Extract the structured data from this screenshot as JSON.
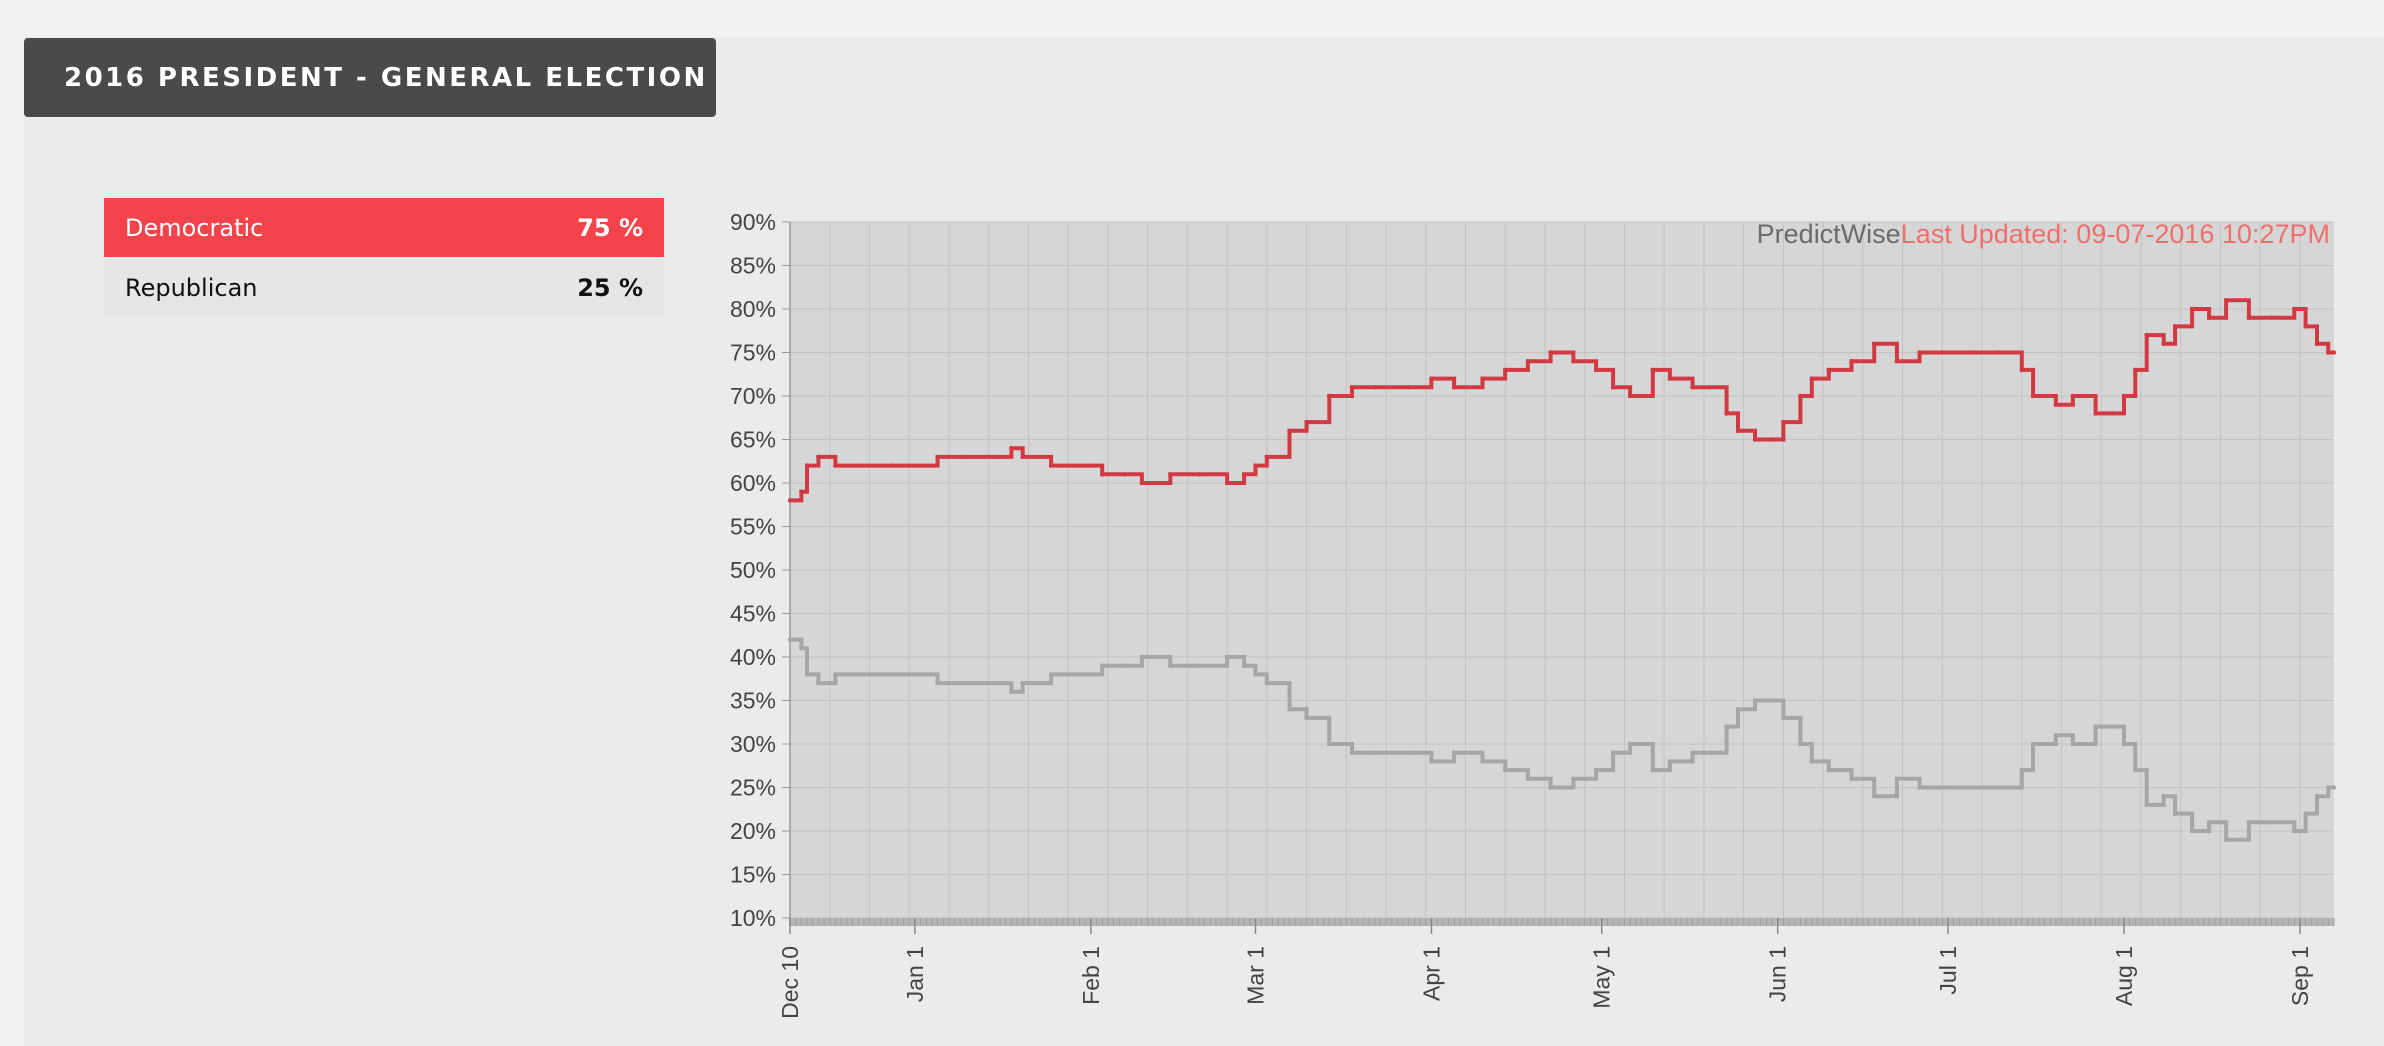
{
  "header": {
    "title": "2016 PRESIDENT - GENERAL ELECTION"
  },
  "legend": [
    {
      "label": "Democratic",
      "value": "75 %"
    },
    {
      "label": "Republican",
      "value": "25 %"
    }
  ],
  "colors": {
    "democratic": "#d23a43",
    "republican": "#a6a6a6",
    "plot_background": "#d6d6d6",
    "gridline": "#c3c3c3",
    "brand_text": "#6b6b6b",
    "updated_text": "#ef6f6f"
  },
  "chart_data": {
    "type": "line",
    "title": "",
    "xlabel": "",
    "ylabel": "",
    "brand": "PredictWise",
    "updated": "Last Updated: 09-07-2016 10:27PM",
    "ylim": [
      10,
      90
    ],
    "xlim": [
      "2015-12-10",
      "2016-09-07"
    ],
    "grid": true,
    "yticks": [
      "10%",
      "15%",
      "20%",
      "25%",
      "30%",
      "35%",
      "40%",
      "45%",
      "50%",
      "55%",
      "60%",
      "65%",
      "70%",
      "75%",
      "80%",
      "85%",
      "90%"
    ],
    "xticks": [
      {
        "date": "2015-12-10",
        "label": "Dec 10"
      },
      {
        "date": "2016-01-01",
        "label": "Jan 1"
      },
      {
        "date": "2016-02-01",
        "label": "Feb 1"
      },
      {
        "date": "2016-03-01",
        "label": "Mar 1"
      },
      {
        "date": "2016-04-01",
        "label": "Apr 1"
      },
      {
        "date": "2016-05-01",
        "label": "May 1"
      },
      {
        "date": "2016-06-01",
        "label": "Jun 1"
      },
      {
        "date": "2016-07-01",
        "label": "Jul 1"
      },
      {
        "date": "2016-08-01",
        "label": "Aug 1"
      },
      {
        "date": "2016-09-01",
        "label": "Sep 1"
      }
    ],
    "series": [
      {
        "name": "Democratic",
        "color": "#d23a43",
        "points": [
          [
            "2015-12-10",
            58
          ],
          [
            "2015-12-12",
            59
          ],
          [
            "2015-12-13",
            62
          ],
          [
            "2015-12-15",
            63
          ],
          [
            "2015-12-18",
            62
          ],
          [
            "2015-12-22",
            62
          ],
          [
            "2015-12-28",
            62
          ],
          [
            "2016-01-05",
            63
          ],
          [
            "2016-01-10",
            63
          ],
          [
            "2016-01-15",
            63
          ],
          [
            "2016-01-18",
            64
          ],
          [
            "2016-01-20",
            63
          ],
          [
            "2016-01-25",
            62
          ],
          [
            "2016-02-01",
            62
          ],
          [
            "2016-02-03",
            61
          ],
          [
            "2016-02-07",
            61
          ],
          [
            "2016-02-10",
            60
          ],
          [
            "2016-02-15",
            61
          ],
          [
            "2016-02-20",
            61
          ],
          [
            "2016-02-25",
            60
          ],
          [
            "2016-02-28",
            61
          ],
          [
            "2016-03-01",
            62
          ],
          [
            "2016-03-03",
            63
          ],
          [
            "2016-03-07",
            66
          ],
          [
            "2016-03-10",
            67
          ],
          [
            "2016-03-14",
            70
          ],
          [
            "2016-03-18",
            71
          ],
          [
            "2016-03-22",
            71
          ],
          [
            "2016-03-28",
            71
          ],
          [
            "2016-04-01",
            72
          ],
          [
            "2016-04-05",
            71
          ],
          [
            "2016-04-10",
            72
          ],
          [
            "2016-04-14",
            73
          ],
          [
            "2016-04-18",
            74
          ],
          [
            "2016-04-22",
            75
          ],
          [
            "2016-04-26",
            74
          ],
          [
            "2016-04-30",
            73
          ],
          [
            "2016-05-03",
            71
          ],
          [
            "2016-05-06",
            70
          ],
          [
            "2016-05-10",
            73
          ],
          [
            "2016-05-13",
            72
          ],
          [
            "2016-05-17",
            71
          ],
          [
            "2016-05-20",
            71
          ],
          [
            "2016-05-23",
            68
          ],
          [
            "2016-05-25",
            66
          ],
          [
            "2016-05-28",
            65
          ],
          [
            "2016-05-31",
            65
          ],
          [
            "2016-06-02",
            67
          ],
          [
            "2016-06-05",
            70
          ],
          [
            "2016-06-07",
            72
          ],
          [
            "2016-06-10",
            73
          ],
          [
            "2016-06-14",
            74
          ],
          [
            "2016-06-18",
            76
          ],
          [
            "2016-06-22",
            74
          ],
          [
            "2016-06-26",
            75
          ],
          [
            "2016-06-30",
            75
          ],
          [
            "2016-07-05",
            75
          ],
          [
            "2016-07-10",
            75
          ],
          [
            "2016-07-14",
            73
          ],
          [
            "2016-07-16",
            70
          ],
          [
            "2016-07-20",
            69
          ],
          [
            "2016-07-23",
            70
          ],
          [
            "2016-07-27",
            68
          ],
          [
            "2016-07-30",
            68
          ],
          [
            "2016-08-01",
            70
          ],
          [
            "2016-08-03",
            73
          ],
          [
            "2016-08-05",
            77
          ],
          [
            "2016-08-08",
            76
          ],
          [
            "2016-08-10",
            78
          ],
          [
            "2016-08-13",
            80
          ],
          [
            "2016-08-16",
            79
          ],
          [
            "2016-08-19",
            81
          ],
          [
            "2016-08-23",
            79
          ],
          [
            "2016-08-27",
            79
          ],
          [
            "2016-08-31",
            80
          ],
          [
            "2016-09-02",
            78
          ],
          [
            "2016-09-04",
            76
          ],
          [
            "2016-09-06",
            75
          ],
          [
            "2016-09-07",
            75
          ]
        ]
      },
      {
        "name": "Republican",
        "color": "#a6a6a6",
        "points": [
          [
            "2015-12-10",
            42
          ],
          [
            "2015-12-12",
            41
          ],
          [
            "2015-12-13",
            38
          ],
          [
            "2015-12-15",
            37
          ],
          [
            "2015-12-18",
            38
          ],
          [
            "2015-12-22",
            38
          ],
          [
            "2015-12-28",
            38
          ],
          [
            "2016-01-05",
            37
          ],
          [
            "2016-01-10",
            37
          ],
          [
            "2016-01-15",
            37
          ],
          [
            "2016-01-18",
            36
          ],
          [
            "2016-01-20",
            37
          ],
          [
            "2016-01-25",
            38
          ],
          [
            "2016-02-01",
            38
          ],
          [
            "2016-02-03",
            39
          ],
          [
            "2016-02-07",
            39
          ],
          [
            "2016-02-10",
            40
          ],
          [
            "2016-02-15",
            39
          ],
          [
            "2016-02-20",
            39
          ],
          [
            "2016-02-25",
            40
          ],
          [
            "2016-02-28",
            39
          ],
          [
            "2016-03-01",
            38
          ],
          [
            "2016-03-03",
            37
          ],
          [
            "2016-03-07",
            34
          ],
          [
            "2016-03-10",
            33
          ],
          [
            "2016-03-14",
            30
          ],
          [
            "2016-03-18",
            29
          ],
          [
            "2016-03-22",
            29
          ],
          [
            "2016-03-28",
            29
          ],
          [
            "2016-04-01",
            28
          ],
          [
            "2016-04-05",
            29
          ],
          [
            "2016-04-10",
            28
          ],
          [
            "2016-04-14",
            27
          ],
          [
            "2016-04-18",
            26
          ],
          [
            "2016-04-22",
            25
          ],
          [
            "2016-04-26",
            26
          ],
          [
            "2016-04-30",
            27
          ],
          [
            "2016-05-03",
            29
          ],
          [
            "2016-05-06",
            30
          ],
          [
            "2016-05-10",
            27
          ],
          [
            "2016-05-13",
            28
          ],
          [
            "2016-05-17",
            29
          ],
          [
            "2016-05-20",
            29
          ],
          [
            "2016-05-23",
            32
          ],
          [
            "2016-05-25",
            34
          ],
          [
            "2016-05-28",
            35
          ],
          [
            "2016-05-31",
            35
          ],
          [
            "2016-06-02",
            33
          ],
          [
            "2016-06-05",
            30
          ],
          [
            "2016-06-07",
            28
          ],
          [
            "2016-06-10",
            27
          ],
          [
            "2016-06-14",
            26
          ],
          [
            "2016-06-18",
            24
          ],
          [
            "2016-06-22",
            26
          ],
          [
            "2016-06-26",
            25
          ],
          [
            "2016-06-30",
            25
          ],
          [
            "2016-07-05",
            25
          ],
          [
            "2016-07-10",
            25
          ],
          [
            "2016-07-14",
            27
          ],
          [
            "2016-07-16",
            30
          ],
          [
            "2016-07-20",
            31
          ],
          [
            "2016-07-23",
            30
          ],
          [
            "2016-07-27",
            32
          ],
          [
            "2016-07-30",
            32
          ],
          [
            "2016-08-01",
            30
          ],
          [
            "2016-08-03",
            27
          ],
          [
            "2016-08-05",
            23
          ],
          [
            "2016-08-08",
            24
          ],
          [
            "2016-08-10",
            22
          ],
          [
            "2016-08-13",
            20
          ],
          [
            "2016-08-16",
            21
          ],
          [
            "2016-08-19",
            19
          ],
          [
            "2016-08-23",
            21
          ],
          [
            "2016-08-27",
            21
          ],
          [
            "2016-08-31",
            20
          ],
          [
            "2016-09-02",
            22
          ],
          [
            "2016-09-04",
            24
          ],
          [
            "2016-09-06",
            25
          ],
          [
            "2016-09-07",
            25
          ]
        ]
      }
    ]
  }
}
